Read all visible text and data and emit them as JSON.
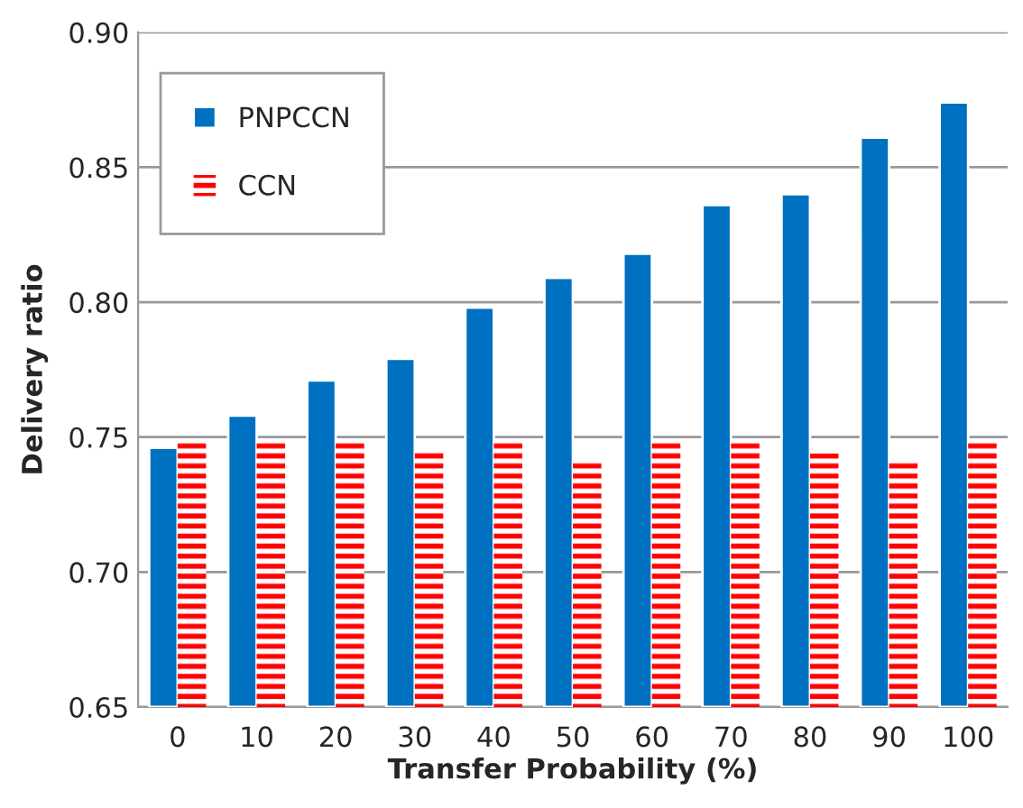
{
  "chart_data": {
    "type": "bar",
    "xlabel": "Transfer Probability (%)",
    "ylabel": "Delivery ratio",
    "categories": [
      "0",
      "10",
      "20",
      "30",
      "40",
      "50",
      "60",
      "70",
      "80",
      "90",
      "100"
    ],
    "series": [
      {
        "name": "PNPCCN",
        "color": "#0070c0",
        "values": [
          0.746,
          0.758,
          0.771,
          0.779,
          0.798,
          0.809,
          0.818,
          0.836,
          0.84,
          0.861,
          0.874
        ]
      },
      {
        "name": "CCN",
        "color": "#ff0000",
        "values": [
          0.748,
          0.748,
          0.748,
          0.745,
          0.748,
          0.741,
          0.748,
          0.748,
          0.744,
          0.741,
          0.748
        ]
      }
    ],
    "ylim": [
      0.65,
      0.9
    ],
    "yticks": [
      {
        "value": 0.65,
        "label": "0.65"
      },
      {
        "value": 0.7,
        "label": "0.70"
      },
      {
        "value": 0.75,
        "label": "0.75"
      },
      {
        "value": 0.8,
        "label": "0.80"
      },
      {
        "value": 0.85,
        "label": "0.85"
      },
      {
        "value": 0.9,
        "label": "0.90"
      }
    ],
    "grid": "y",
    "legend": "top left"
  }
}
